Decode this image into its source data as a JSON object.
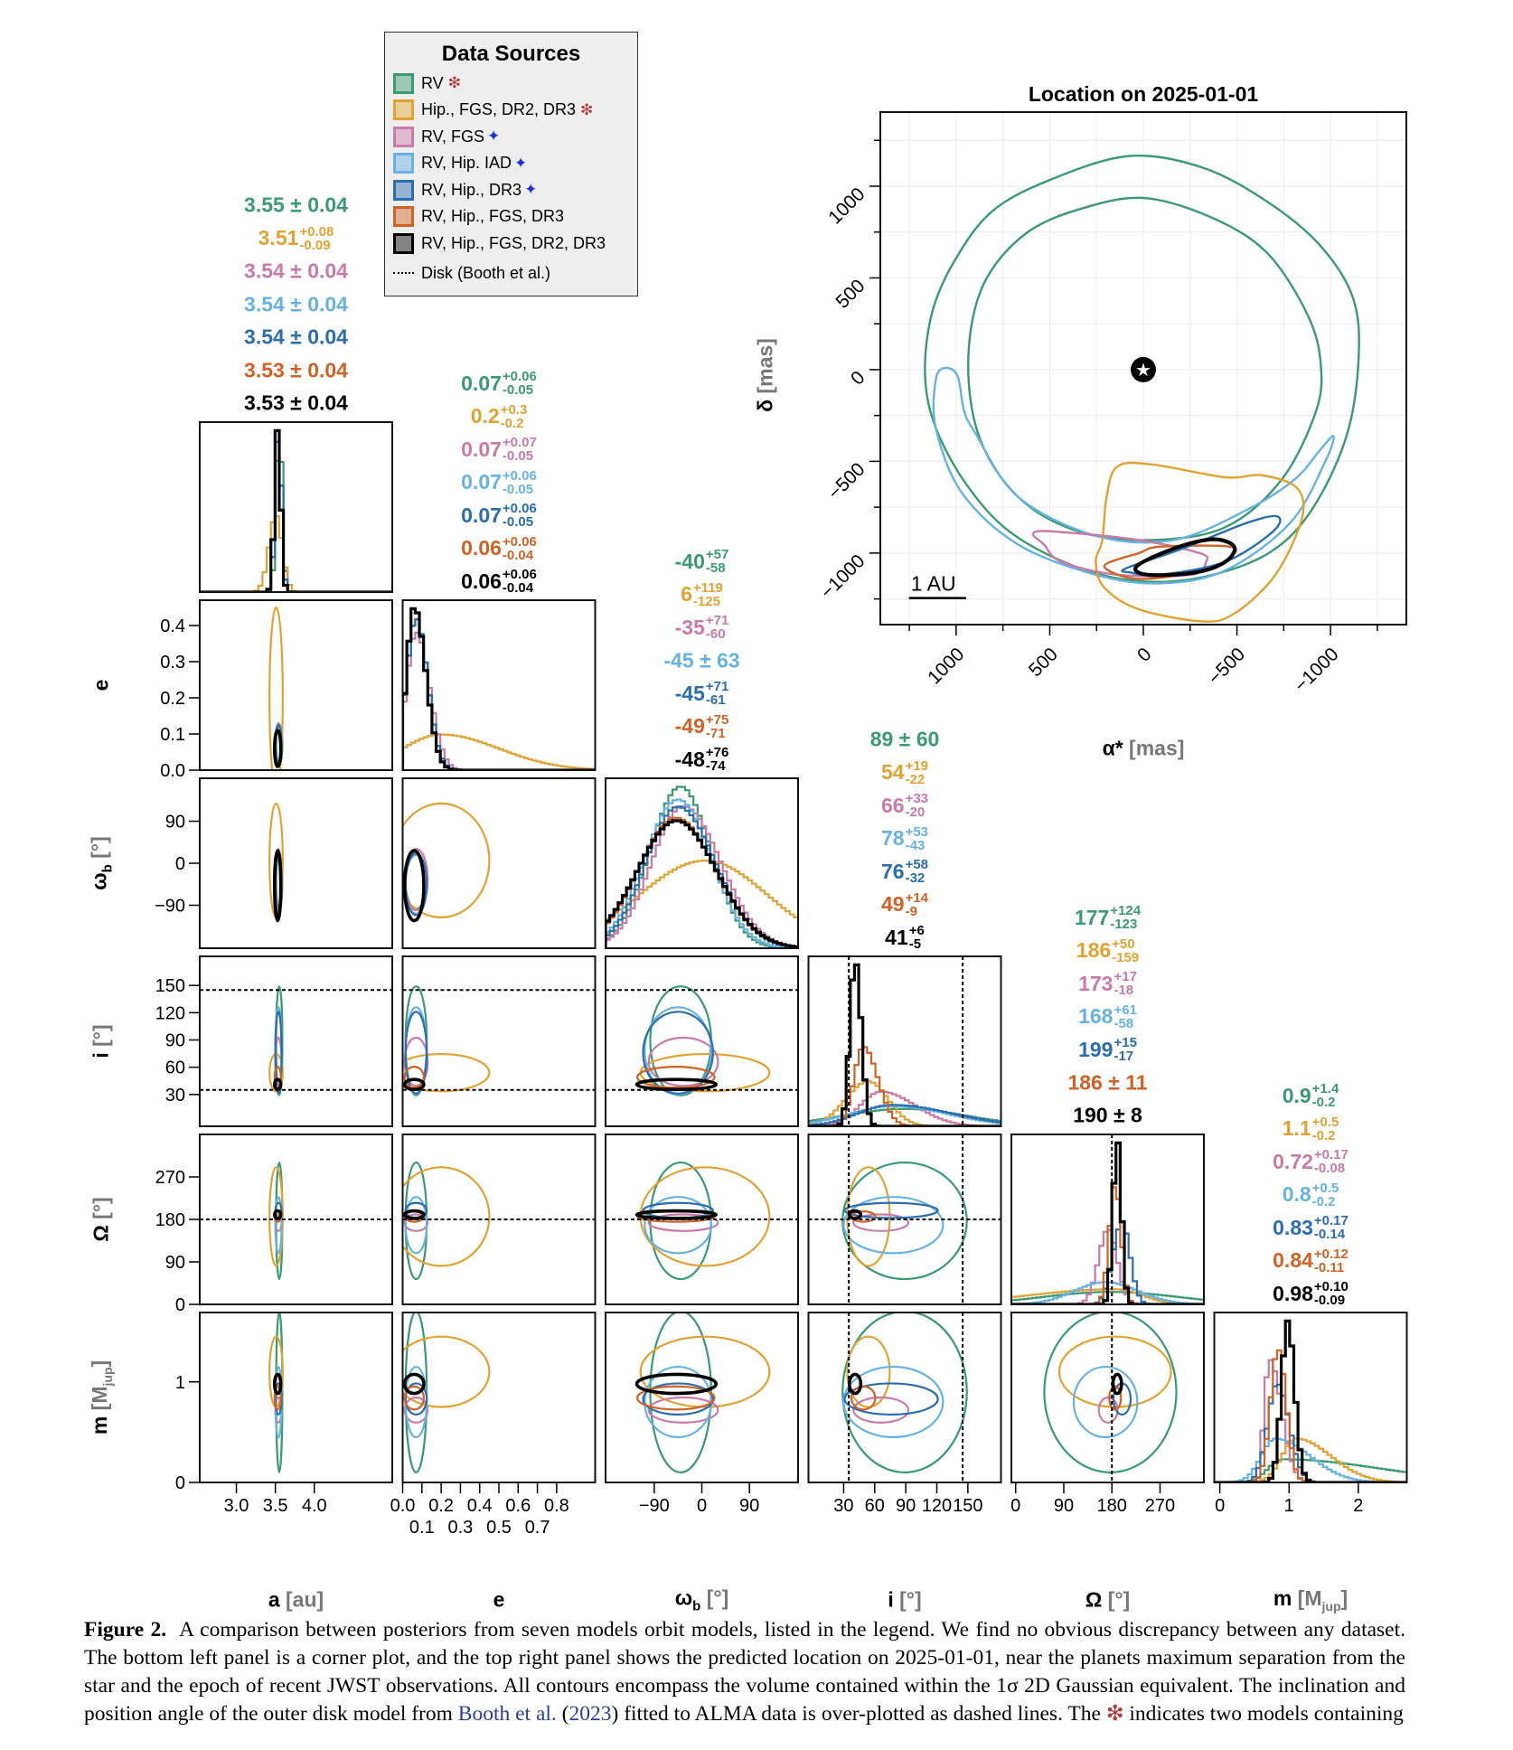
{
  "legend": {
    "title": "Data Sources",
    "items": [
      {
        "label": "RV",
        "color": "#3a9a72",
        "marker": "❇",
        "marker_color": "red"
      },
      {
        "label": "Hip., FGS, DR2, DR3",
        "color": "#e2a232",
        "marker": "❇",
        "marker_color": "red"
      },
      {
        "label": "RV, FGS",
        "color": "#c97aa6",
        "marker": "✦",
        "marker_color": "blue"
      },
      {
        "label": "RV, Hip. IAD",
        "color": "#66b2e4",
        "marker": "✦",
        "marker_color": "blue"
      },
      {
        "label": "RV, Hip., DR3",
        "color": "#2a6db0",
        "marker": "✦",
        "marker_color": "blue"
      },
      {
        "label": "RV, Hip., FGS, DR3",
        "color": "#cf6224",
        "marker": "",
        "marker_color": ""
      },
      {
        "label": "RV, Hip., FGS, DR2, DR3",
        "color": "#000000",
        "marker": "",
        "marker_color": ""
      }
    ],
    "disk_label": "Disk (Booth et al.)"
  },
  "chart_data": [
    {
      "type": "corner",
      "parameters": [
        {
          "key": "a",
          "label": "a",
          "unit": "[au]",
          "xlim": [
            2.53,
            5.0
          ],
          "xticks": [
            3.0,
            3.5,
            4.0
          ],
          "xticklabels": [
            "3.0",
            "3.5",
            "4.0"
          ]
        },
        {
          "key": "e",
          "label": "e",
          "unit": "",
          "xlim": [
            0,
            1.0
          ],
          "ylim": [
            0,
            0.47
          ],
          "xticks": [
            0,
            0.1,
            0.2,
            0.3,
            0.4,
            0.5,
            0.6,
            0.7,
            0.8
          ],
          "xticklabels": [
            "0.0",
            "0.1",
            "0.2",
            "0.3",
            "0.4",
            "0.5",
            "0.6",
            "0.7",
            "0.8"
          ],
          "yticks": [
            0,
            0.1,
            0.2,
            0.3,
            0.4
          ],
          "yticklabels": [
            "0.0",
            "0.1",
            "0.2",
            "0.3",
            "0.4"
          ]
        },
        {
          "key": "w",
          "label": "ω",
          "sub": "b",
          "unit": "[°]",
          "xlim": [
            -182,
            182
          ],
          "ylim": [
            -182,
            182
          ],
          "xticks": [
            -90,
            0,
            90
          ],
          "xticklabels": [
            "−90",
            "0",
            "90"
          ],
          "yticks": [
            -90,
            0,
            90
          ],
          "yticklabels": [
            "−90",
            "0",
            "90"
          ]
        },
        {
          "key": "i",
          "label": "i",
          "unit": "[°]",
          "xlim": [
            -4,
            182
          ],
          "ylim": [
            -5,
            182
          ],
          "xticks": [
            30,
            60,
            90,
            120,
            150
          ],
          "xticklabels": [
            "30",
            "60",
            "90",
            "120",
            "150"
          ],
          "yticks": [
            30,
            60,
            90,
            120,
            150
          ],
          "yticklabels": [
            "30",
            "60",
            "90",
            "120",
            "150"
          ]
        },
        {
          "key": "O",
          "label": "Ω",
          "unit": "[°]",
          "xlim": [
            -8,
            352
          ],
          "ylim": [
            0,
            360
          ],
          "xticks": [
            0,
            90,
            180,
            270
          ],
          "xticklabels": [
            "0",
            "90",
            "180",
            "270"
          ],
          "yticks": [
            0,
            90,
            180,
            270
          ],
          "yticklabels": [
            "0",
            "90",
            "180",
            "270"
          ]
        },
        {
          "key": "m",
          "label": "m",
          "unit_main": "[M",
          "unit_sub": "jup",
          "unit_end": "]",
          "xlim": [
            -0.08,
            2.7
          ],
          "ylim": [
            0,
            1.69
          ],
          "xticks": [
            0,
            1,
            2
          ],
          "xticklabels": [
            "0",
            "1",
            "2"
          ],
          "yticks": [
            0,
            1
          ],
          "yticklabels": [
            "0",
            "1"
          ]
        }
      ],
      "disk": {
        "i": [
          35,
          145
        ],
        "O": [
          180
        ]
      },
      "series": [
        {
          "name": "RV",
          "color": "#3a9a72",
          "stats": {
            "a": {
              "v": "3.55",
              "pm": "0.04"
            },
            "e": {
              "v": "0.07",
              "up": "+0.06",
              "lo": "-0.05"
            },
            "w": {
              "v": "-40",
              "up": "+57",
              "lo": "-58"
            },
            "i": {
              "v": "89",
              "pm": "60"
            },
            "O": {
              "v": "177",
              "up": "+124",
              "lo": "-123"
            },
            "m": {
              "v": "0.9",
              "up": "+1.4",
              "lo": "-0.2"
            }
          }
        },
        {
          "name": "Hip., FGS, DR2, DR3",
          "color": "#e2a232",
          "stats": {
            "a": {
              "v": "3.51",
              "up": "+0.08",
              "lo": "-0.09"
            },
            "e": {
              "v": "0.2",
              "up": "+0.3",
              "lo": "-0.2"
            },
            "w": {
              "v": "6",
              "up": "+119",
              "lo": "-125"
            },
            "i": {
              "v": "54",
              "up": "+19",
              "lo": "-22"
            },
            "O": {
              "v": "186",
              "up": "+50",
              "lo": "-159"
            },
            "m": {
              "v": "1.1",
              "up": "+0.5",
              "lo": "-0.2"
            }
          }
        },
        {
          "name": "RV, FGS",
          "color": "#c97aa6",
          "stats": {
            "a": {
              "v": "3.54",
              "pm": "0.04"
            },
            "e": {
              "v": "0.07",
              "up": "+0.07",
              "lo": "-0.05"
            },
            "w": {
              "v": "-35",
              "up": "+71",
              "lo": "-60"
            },
            "i": {
              "v": "66",
              "up": "+33",
              "lo": "-20"
            },
            "O": {
              "v": "173",
              "up": "+17",
              "lo": "-18"
            },
            "m": {
              "v": "0.72",
              "up": "+0.17",
              "lo": "-0.08"
            }
          }
        },
        {
          "name": "RV, Hip. IAD",
          "color": "#66b2e4",
          "stats": {
            "a": {
              "v": "3.54",
              "pm": "0.04"
            },
            "e": {
              "v": "0.07",
              "up": "+0.06",
              "lo": "-0.05"
            },
            "w": {
              "v": "-45",
              "pm": "63"
            },
            "i": {
              "v": "78",
              "up": "+53",
              "lo": "-43"
            },
            "O": {
              "v": "168",
              "up": "+61",
              "lo": "-58"
            },
            "m": {
              "v": "0.8",
              "up": "+0.5",
              "lo": "-0.2"
            }
          }
        },
        {
          "name": "RV, Hip., DR3",
          "color": "#2a6db0",
          "stats": {
            "a": {
              "v": "3.54",
              "pm": "0.04"
            },
            "e": {
              "v": "0.07",
              "up": "+0.06",
              "lo": "-0.05"
            },
            "w": {
              "v": "-45",
              "up": "+71",
              "lo": "-61"
            },
            "i": {
              "v": "76",
              "up": "+58",
              "lo": "-32"
            },
            "O": {
              "v": "199",
              "up": "+15",
              "lo": "-17"
            },
            "m": {
              "v": "0.83",
              "up": "+0.17",
              "lo": "-0.14"
            }
          }
        },
        {
          "name": "RV, Hip., FGS, DR3",
          "color": "#cf6224",
          "stats": {
            "a": {
              "v": "3.53",
              "pm": "0.04"
            },
            "e": {
              "v": "0.06",
              "up": "+0.06",
              "lo": "-0.04"
            },
            "w": {
              "v": "-49",
              "up": "+75",
              "lo": "-71"
            },
            "i": {
              "v": "49",
              "up": "+14",
              "lo": "-9"
            },
            "O": {
              "v": "186",
              "pm": "11"
            },
            "m": {
              "v": "0.84",
              "up": "+0.12",
              "lo": "-0.11"
            }
          }
        },
        {
          "name": "RV, Hip., FGS, DR2, DR3",
          "color": "#000000",
          "stats": {
            "a": {
              "v": "3.53",
              "pm": "0.04"
            },
            "e": {
              "v": "0.06",
              "up": "+0.06",
              "lo": "-0.04"
            },
            "w": {
              "v": "-48",
              "up": "+76",
              "lo": "-74"
            },
            "i": {
              "v": "41",
              "up": "+6",
              "lo": "-5"
            },
            "O": {
              "v": "190",
              "pm": "8"
            },
            "m": {
              "v": "0.98",
              "up": "+0.10",
              "lo": "-0.09"
            }
          }
        }
      ]
    },
    {
      "type": "contour",
      "title": "Location on 2025-01-01",
      "xlabel": "α*",
      "xunit": "[mas]",
      "ylabel": "δ",
      "yunit": "[mas]",
      "xlim": [
        1405,
        -1405
      ],
      "ylim": [
        -1390,
        1404
      ],
      "xticks": [
        1000,
        500,
        0,
        -500,
        -1000
      ],
      "xticklabels": [
        "1000",
        "500",
        "0",
        "−500",
        "−1000"
      ],
      "yticks": [
        1000,
        500,
        0,
        -500,
        -1000
      ],
      "yticklabels": [
        "1000",
        "500",
        "0",
        "−500",
        "−1000"
      ],
      "grid": true,
      "star": [
        0,
        0
      ],
      "scale_bar": {
        "label": "1 AU",
        "from": 1252,
        "to": 947,
        "y": -1245
      },
      "contours": [
        {
          "series": "RV",
          "color": "#3a9a72",
          "points": [
            [
              69,
              1165
            ],
            [
              485,
              1040
            ],
            [
              808,
              863
            ],
            [
              1016,
              580
            ],
            [
              1132,
              297
            ],
            [
              1166,
              -33
            ],
            [
              1109,
              -316
            ],
            [
              947,
              -623
            ],
            [
              716,
              -882
            ],
            [
              370,
              -1071
            ],
            [
              23,
              -1153
            ],
            [
              -323,
              -1130
            ],
            [
              -670,
              -1000
            ],
            [
              -900,
              -764
            ],
            [
              -1085,
              -363
            ],
            [
              -1150,
              61
            ],
            [
              -1120,
              391
            ],
            [
              -947,
              674
            ],
            [
              -670,
              910
            ],
            [
              -323,
              1099
            ]
          ]
        },
        {
          "series": "RV",
          "color": "#3a9a72",
          "points": [
            [
              -23,
              934
            ],
            [
              300,
              887
            ],
            [
              624,
              745
            ],
            [
              855,
              462
            ],
            [
              935,
              61
            ],
            [
              878,
              -363
            ],
            [
              670,
              -693
            ],
            [
              346,
              -882
            ],
            [
              -46,
              -929
            ],
            [
              -439,
              -858
            ],
            [
              -739,
              -599
            ],
            [
              -924,
              -222
            ],
            [
              -947,
              38
            ],
            [
              -878,
              297
            ],
            [
              -670,
              627
            ],
            [
              -393,
              816
            ]
          ]
        },
        {
          "series": "RV, Hip. IAD",
          "color": "#66b2e4",
          "points": [
            [
              1062,
              9
            ],
            [
              1109,
              -57
            ],
            [
              1109,
              -316
            ],
            [
              970,
              -670
            ],
            [
              670,
              -953
            ],
            [
              254,
              -1118
            ],
            [
              -92,
              -1165
            ],
            [
              -439,
              -1094
            ],
            [
              -785,
              -835
            ],
            [
              -970,
              -505
            ],
            [
              -1016,
              -363
            ],
            [
              -947,
              -434
            ],
            [
              -808,
              -599
            ],
            [
              -554,
              -764
            ],
            [
              -162,
              -929
            ],
            [
              254,
              -906
            ],
            [
              670,
              -693
            ],
            [
              901,
              -340
            ],
            [
              958,
              -222
            ],
            [
              993,
              -33
            ]
          ]
        },
        {
          "series": "Hip., FGS, DR2, DR3",
          "color": "#e2a232",
          "points": [
            [
              139,
              -528
            ],
            [
              -46,
              -517
            ],
            [
              -439,
              -587
            ],
            [
              -624,
              -575
            ],
            [
              -808,
              -634
            ],
            [
              -855,
              -764
            ],
            [
              -785,
              -976
            ],
            [
              -670,
              -1165
            ],
            [
              -485,
              -1330
            ],
            [
              -323,
              -1373
            ],
            [
              23,
              -1307
            ],
            [
              208,
              -1189
            ],
            [
              254,
              -1047
            ],
            [
              219,
              -929
            ],
            [
              196,
              -693
            ]
          ]
        },
        {
          "series": "RV, FGS",
          "color": "#c97aa6",
          "points": [
            [
              589,
              -894
            ],
            [
              485,
              -882
            ],
            [
              23,
              -929
            ],
            [
              -300,
              -1000
            ],
            [
              -335,
              -1047
            ],
            [
              -254,
              -1118
            ],
            [
              139,
              -1118
            ],
            [
              439,
              -1047
            ],
            [
              531,
              -953
            ]
          ]
        },
        {
          "series": "RV, Hip., FGS, DR3",
          "color": "#cf6224",
          "points": [
            [
              208,
              -1071
            ],
            [
              23,
              -1000
            ],
            [
              -92,
              -965
            ],
            [
              -462,
              -965
            ],
            [
              -462,
              -1024
            ],
            [
              -323,
              -1094
            ],
            [
              23,
              -1141
            ]
          ]
        },
        {
          "series": "RV, Hip., DR3",
          "color": "#2a6db0",
          "points": [
            [
              92,
              -1083
            ],
            [
              -208,
              -976
            ],
            [
              -554,
              -835
            ],
            [
              -716,
              -800
            ],
            [
              -693,
              -882
            ],
            [
              -439,
              -1047
            ],
            [
              -92,
              -1118
            ],
            [
              69,
              -1106
            ]
          ]
        },
        {
          "series": "RV, Hip., FGS, DR2, DR3",
          "color": "#000000",
          "points": [
            [
              35,
              -1071
            ],
            [
              -162,
              -976
            ],
            [
              -370,
              -925
            ],
            [
              -485,
              -965
            ],
            [
              -439,
              -1047
            ],
            [
              -277,
              -1106
            ],
            [
              -23,
              -1118
            ]
          ]
        }
      ]
    }
  ],
  "caption": {
    "label": "Figure 2.",
    "text1": "A comparison between posteriors from seven models orbit models, listed in the legend. We find no obvious discrepancy between any dataset. The bottom left panel is a corner plot, and the top right panel shows the predicted location on 2025-01-01, near the planets maximum separation from the star and the epoch of recent JWST observations. All contours encompass the volume contained within the 1σ 2D Gaussian equivalent. The inclination and position angle of the outer disk model from ",
    "cite_authors": "Booth et al.",
    "paren_open": " (",
    "cite_year": "2023",
    "text2": ") fitted to ALMA data is over-plotted as dashed lines. The ",
    "symbol": "❇",
    "text3": " indicates two models containing"
  }
}
